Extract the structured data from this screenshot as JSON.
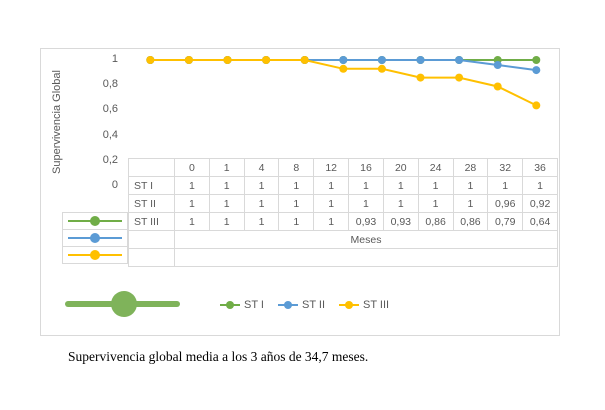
{
  "chart_data": {
    "type": "line",
    "title": "",
    "xlabel": "Meses",
    "ylabel": "Supervivencia Global",
    "categories": [
      0,
      1,
      4,
      8,
      12,
      16,
      20,
      24,
      28,
      32,
      36
    ],
    "category_labels": [
      "0",
      "1",
      "4",
      "8",
      "12",
      "16",
      "20",
      "24",
      "28",
      "32",
      "36"
    ],
    "series": [
      {
        "name": "ST I",
        "color": "#70ad47",
        "values": [
          1,
          1,
          1,
          1,
          1,
          1,
          1,
          1,
          1,
          1,
          1
        ],
        "display_values": [
          "1",
          "1",
          "1",
          "1",
          "1",
          "1",
          "1",
          "1",
          "1",
          "1",
          "1"
        ]
      },
      {
        "name": "ST II",
        "color": "#5b9bd5",
        "values": [
          1,
          1,
          1,
          1,
          1,
          1,
          1,
          1,
          1,
          0.96,
          0.92
        ],
        "display_values": [
          "1",
          "1",
          "1",
          "1",
          "1",
          "1",
          "1",
          "1",
          "1",
          "0,96",
          "0,92"
        ]
      },
      {
        "name": "ST III",
        "color": "#ffc000",
        "values": [
          1,
          1,
          1,
          1,
          1,
          0.93,
          0.93,
          0.86,
          0.86,
          0.79,
          0.64
        ],
        "display_values": [
          "1",
          "1",
          "1",
          "1",
          "1",
          "0,93",
          "0,93",
          "0,86",
          "0,86",
          "0,79",
          "0,64"
        ]
      }
    ],
    "y_ticks": [
      "1",
      "0,8",
      "0,6",
      "0,4",
      "0,2",
      "0"
    ],
    "y_tick_values": [
      1,
      0.8,
      0.6,
      0.4,
      0.2,
      0
    ],
    "ylim": [
      0,
      1
    ],
    "grid": false,
    "legend_position": "bottom",
    "data_table_shown": true
  },
  "legend": {
    "items": [
      {
        "label": "ST I",
        "color": "#70ad47"
      },
      {
        "label": "ST II",
        "color": "#5b9bd5"
      },
      {
        "label": "ST III",
        "color": "#ffc000"
      }
    ]
  },
  "decoration": {
    "big_marker_color": "#7fb35a"
  },
  "caption": "Supervivencia global media a los 3 años de 34,7 meses."
}
